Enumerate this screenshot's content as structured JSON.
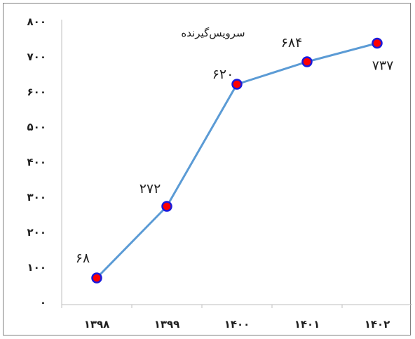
{
  "chart_data": {
    "type": "line",
    "title": "",
    "xlabel": "",
    "ylabel": "",
    "categories": [
      "۱۳۹۸",
      "۱۳۹۹",
      "۱۴۰۰",
      "۱۴۰۱",
      "۱۴۰۲"
    ],
    "series": [
      {
        "name": "سرویس‌گیرنده",
        "values": [
          68,
          272,
          620,
          684,
          737
        ],
        "labels": [
          "۶۸",
          "۲۷۲",
          "۶۲۰",
          "۶۸۴",
          "۷۳۷"
        ],
        "color": "#5b9bd5",
        "marker_fill": "#ff0000",
        "marker_stroke": "#1a1adc"
      }
    ],
    "ylim": [
      0,
      800
    ],
    "y_ticks": [
      0,
      100,
      200,
      300,
      400,
      500,
      600,
      700,
      800
    ],
    "y_tick_labels": [
      "۰",
      "۱۰۰",
      "۲۰۰",
      "۳۰۰",
      "۴۰۰",
      "۵۰۰",
      "۶۰۰",
      "۷۰۰",
      "۸۰۰"
    ],
    "grid": false,
    "legend": "none",
    "data_labels": true
  }
}
